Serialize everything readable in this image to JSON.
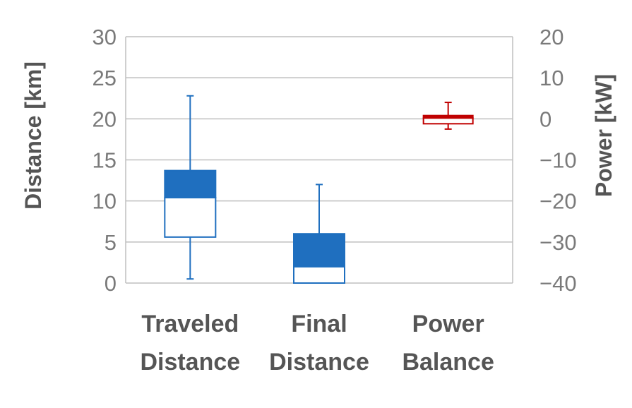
{
  "chart_data": {
    "type": "boxplot",
    "categories": [
      [
        "Traveled",
        "Distance"
      ],
      [
        "Final",
        "Distance"
      ],
      [
        "Power",
        "Balance"
      ]
    ],
    "left_axis": {
      "label": "Distance [km]",
      "range": [
        0,
        30
      ],
      "ticks": [
        0,
        5,
        10,
        15,
        20,
        25,
        30
      ]
    },
    "right_axis": {
      "label": "Power [kW]",
      "range": [
        -40,
        20
      ],
      "ticks": [
        -40,
        -30,
        -20,
        -10,
        0,
        10,
        20
      ]
    },
    "grid": true,
    "boxes": [
      {
        "name": "Traveled Distance",
        "axis": "left",
        "color": "#1f6fbf",
        "min": 0.5,
        "q1": 5.6,
        "median": 10.4,
        "q3": 13.7,
        "max": 22.8
      },
      {
        "name": "Final Distance",
        "axis": "left",
        "color": "#1f6fbf",
        "min": 0.0,
        "q1": 0.0,
        "median": 2.0,
        "q3": 6.0,
        "max": 12.0
      },
      {
        "name": "Power Balance",
        "axis": "right",
        "color": "#c00000",
        "min": -2.5,
        "q1": -1.2,
        "median": 0.2,
        "q3": 0.8,
        "max": 4.0
      }
    ]
  }
}
